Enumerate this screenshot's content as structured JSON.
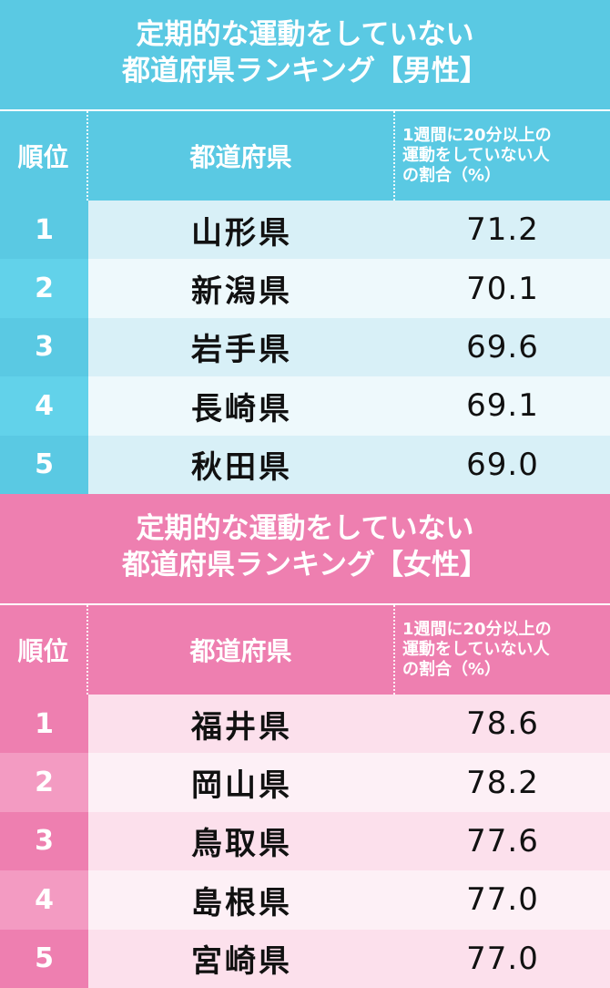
{
  "male": {
    "title_line1": "定期的な運動をしていない",
    "title_line2": "都道府県ランキング【男性】",
    "header": {
      "rank": "順位",
      "prefecture": "都道府県",
      "percent": "1週間に20分以上の\n運動をしていない人\nの割合（%）"
    },
    "rows": [
      {
        "rank": "1",
        "prefecture": "山形県",
        "value": "71.2"
      },
      {
        "rank": "2",
        "prefecture": "新潟県",
        "value": "70.1"
      },
      {
        "rank": "3",
        "prefecture": "岩手県",
        "value": "69.6"
      },
      {
        "rank": "4",
        "prefecture": "長崎県",
        "value": "69.1"
      },
      {
        "rank": "5",
        "prefecture": "秋田県",
        "value": "69.0"
      }
    ]
  },
  "female": {
    "title_line1": "定期的な運動をしていない",
    "title_line2": "都道府県ランキング【女性】",
    "header": {
      "rank": "順位",
      "prefecture": "都道府県",
      "percent": "1週間に20分以上の\n運動をしていない人\nの割合（%）"
    },
    "rows": [
      {
        "rank": "1",
        "prefecture": "福井県",
        "value": "78.6"
      },
      {
        "rank": "2",
        "prefecture": "岡山県",
        "value": "78.2"
      },
      {
        "rank": "3",
        "prefecture": "鳥取県",
        "value": "77.6"
      },
      {
        "rank": "4",
        "prefecture": "島根県",
        "value": "77.0"
      },
      {
        "rank": "5",
        "prefecture": "宮崎県",
        "value": "77.0"
      }
    ]
  },
  "colors": {
    "male_accent": "#5ac9e3",
    "female_accent": "#ee7fb0"
  }
}
